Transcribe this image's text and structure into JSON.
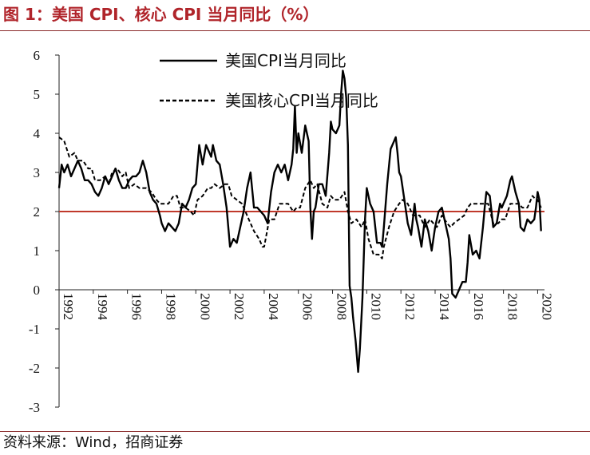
{
  "figure": {
    "title": "图 1：美国 CPI、核心 CPI 当月同比（%）",
    "source": "资料来源：Wind，招商证券"
  },
  "colors": {
    "title": "#b0242a",
    "rule": "#8a2a2a",
    "reference_line": "#c0392b",
    "series": "#000000"
  },
  "chart_data": {
    "type": "line",
    "title": "图 1：美国 CPI、核心 CPI 当月同比（%）",
    "xlabel": "",
    "ylabel": "",
    "xlim": [
      1992,
      2020.4
    ],
    "ylim": [
      -3,
      6
    ],
    "yticks": [
      6,
      5,
      4,
      3,
      2,
      1,
      0,
      -1,
      -2,
      -3
    ],
    "xticks": [
      "1992",
      "1994",
      "1996",
      "1998",
      "2000",
      "2002",
      "2004",
      "2006",
      "2008",
      "2010",
      "2012",
      "2014",
      "2016",
      "2018",
      "2020"
    ],
    "grid": false,
    "legend_position": "top-center",
    "reference_line": {
      "y": 2
    },
    "series": [
      {
        "name": "美国CPI当月同比",
        "style": "solid",
        "points": [
          [
            1992.0,
            2.6
          ],
          [
            1992.15,
            3.2
          ],
          [
            1992.3,
            3.0
          ],
          [
            1992.5,
            3.2
          ],
          [
            1992.7,
            2.9
          ],
          [
            1992.9,
            3.1
          ],
          [
            1993.1,
            3.3
          ],
          [
            1993.3,
            3.1
          ],
          [
            1993.5,
            2.8
          ],
          [
            1993.7,
            2.8
          ],
          [
            1993.9,
            2.7
          ],
          [
            1994.1,
            2.5
          ],
          [
            1994.3,
            2.4
          ],
          [
            1994.5,
            2.6
          ],
          [
            1994.7,
            2.9
          ],
          [
            1994.9,
            2.7
          ],
          [
            1995.1,
            2.9
          ],
          [
            1995.3,
            3.1
          ],
          [
            1995.5,
            2.8
          ],
          [
            1995.7,
            2.6
          ],
          [
            1995.9,
            2.6
          ],
          [
            1996.1,
            2.8
          ],
          [
            1996.3,
            2.9
          ],
          [
            1996.5,
            2.9
          ],
          [
            1996.7,
            3.0
          ],
          [
            1996.9,
            3.3
          ],
          [
            1997.1,
            3.0
          ],
          [
            1997.3,
            2.5
          ],
          [
            1997.5,
            2.3
          ],
          [
            1997.7,
            2.2
          ],
          [
            1997.9,
            1.9
          ],
          [
            1998.0,
            1.7
          ],
          [
            1998.2,
            1.5
          ],
          [
            1998.4,
            1.7
          ],
          [
            1998.6,
            1.6
          ],
          [
            1998.8,
            1.5
          ],
          [
            1999.0,
            1.7
          ],
          [
            1999.2,
            2.2
          ],
          [
            1999.4,
            2.1
          ],
          [
            1999.6,
            2.3
          ],
          [
            1999.8,
            2.6
          ],
          [
            2000.0,
            2.7
          ],
          [
            2000.2,
            3.7
          ],
          [
            2000.4,
            3.2
          ],
          [
            2000.6,
            3.7
          ],
          [
            2000.8,
            3.5
          ],
          [
            2000.9,
            3.4
          ],
          [
            2001.0,
            3.7
          ],
          [
            2001.2,
            3.3
          ],
          [
            2001.4,
            3.2
          ],
          [
            2001.6,
            2.7
          ],
          [
            2001.8,
            2.1
          ],
          [
            2002.0,
            1.1
          ],
          [
            2002.2,
            1.3
          ],
          [
            2002.4,
            1.2
          ],
          [
            2002.6,
            1.6
          ],
          [
            2002.8,
            2.0
          ],
          [
            2003.0,
            2.6
          ],
          [
            2003.2,
            3.0
          ],
          [
            2003.4,
            2.1
          ],
          [
            2003.6,
            2.1
          ],
          [
            2003.8,
            2.0
          ],
          [
            2004.0,
            1.9
          ],
          [
            2004.2,
            1.7
          ],
          [
            2004.4,
            2.5
          ],
          [
            2004.6,
            3.0
          ],
          [
            2004.8,
            3.2
          ],
          [
            2005.0,
            3.0
          ],
          [
            2005.2,
            3.2
          ],
          [
            2005.4,
            2.8
          ],
          [
            2005.6,
            3.2
          ],
          [
            2005.7,
            3.6
          ],
          [
            2005.8,
            4.7
          ],
          [
            2005.9,
            3.5
          ],
          [
            2006.0,
            4.0
          ],
          [
            2006.2,
            3.5
          ],
          [
            2006.4,
            4.2
          ],
          [
            2006.6,
            3.8
          ],
          [
            2006.7,
            2.1
          ],
          [
            2006.8,
            1.3
          ],
          [
            2006.9,
            2.0
          ],
          [
            2007.0,
            2.1
          ],
          [
            2007.2,
            2.7
          ],
          [
            2007.4,
            2.7
          ],
          [
            2007.6,
            2.4
          ],
          [
            2007.8,
            3.5
          ],
          [
            2007.9,
            4.3
          ],
          [
            2008.0,
            4.1
          ],
          [
            2008.2,
            4.0
          ],
          [
            2008.4,
            4.2
          ],
          [
            2008.5,
            5.0
          ],
          [
            2008.6,
            5.6
          ],
          [
            2008.7,
            5.4
          ],
          [
            2008.8,
            4.9
          ],
          [
            2008.9,
            3.7
          ],
          [
            2009.0,
            0.1
          ],
          [
            2009.1,
            -0.2
          ],
          [
            2009.2,
            -0.7
          ],
          [
            2009.35,
            -1.3
          ],
          [
            2009.5,
            -2.1
          ],
          [
            2009.6,
            -1.5
          ],
          [
            2009.75,
            -0.2
          ],
          [
            2009.9,
            1.8
          ],
          [
            2010.0,
            2.6
          ],
          [
            2010.2,
            2.2
          ],
          [
            2010.4,
            2.0
          ],
          [
            2010.6,
            1.2
          ],
          [
            2010.8,
            1.2
          ],
          [
            2010.9,
            1.1
          ],
          [
            2011.0,
            1.6
          ],
          [
            2011.2,
            2.7
          ],
          [
            2011.4,
            3.6
          ],
          [
            2011.6,
            3.8
          ],
          [
            2011.7,
            3.9
          ],
          [
            2011.8,
            3.5
          ],
          [
            2011.9,
            3.0
          ],
          [
            2012.0,
            2.9
          ],
          [
            2012.2,
            2.3
          ],
          [
            2012.4,
            1.7
          ],
          [
            2012.6,
            1.4
          ],
          [
            2012.8,
            2.2
          ],
          [
            2012.9,
            1.8
          ],
          [
            2013.0,
            1.6
          ],
          [
            2013.2,
            1.1
          ],
          [
            2013.4,
            1.8
          ],
          [
            2013.6,
            1.5
          ],
          [
            2013.8,
            1.0
          ],
          [
            2014.0,
            1.6
          ],
          [
            2014.2,
            2.0
          ],
          [
            2014.4,
            2.1
          ],
          [
            2014.6,
            1.7
          ],
          [
            2014.8,
            1.3
          ],
          [
            2014.9,
            0.8
          ],
          [
            2015.0,
            -0.1
          ],
          [
            2015.2,
            -0.2
          ],
          [
            2015.4,
            0.0
          ],
          [
            2015.6,
            0.2
          ],
          [
            2015.8,
            0.2
          ],
          [
            2015.9,
            0.7
          ],
          [
            2016.0,
            1.4
          ],
          [
            2016.2,
            0.9
          ],
          [
            2016.4,
            1.0
          ],
          [
            2016.6,
            0.8
          ],
          [
            2016.8,
            1.6
          ],
          [
            2016.9,
            2.1
          ],
          [
            2017.0,
            2.5
          ],
          [
            2017.2,
            2.4
          ],
          [
            2017.4,
            1.6
          ],
          [
            2017.6,
            1.7
          ],
          [
            2017.8,
            2.2
          ],
          [
            2017.9,
            2.1
          ],
          [
            2018.0,
            2.2
          ],
          [
            2018.2,
            2.4
          ],
          [
            2018.4,
            2.8
          ],
          [
            2018.5,
            2.9
          ],
          [
            2018.7,
            2.5
          ],
          [
            2018.9,
            2.2
          ],
          [
            2019.0,
            1.6
          ],
          [
            2019.2,
            1.5
          ],
          [
            2019.4,
            1.8
          ],
          [
            2019.6,
            1.7
          ],
          [
            2019.8,
            1.8
          ],
          [
            2019.9,
            2.1
          ],
          [
            2020.0,
            2.5
          ],
          [
            2020.1,
            2.3
          ],
          [
            2020.2,
            1.5
          ]
        ]
      },
      {
        "name": "美国核心CPI当月同比",
        "style": "dashed",
        "points": [
          [
            1992.0,
            3.9
          ],
          [
            1992.3,
            3.8
          ],
          [
            1992.6,
            3.4
          ],
          [
            1992.9,
            3.5
          ],
          [
            1993.1,
            3.3
          ],
          [
            1993.4,
            3.3
          ],
          [
            1993.7,
            3.1
          ],
          [
            1993.9,
            3.1
          ],
          [
            1994.1,
            2.8
          ],
          [
            1994.4,
            2.8
          ],
          [
            1994.7,
            2.9
          ],
          [
            1994.9,
            2.7
          ],
          [
            1995.1,
            3.0
          ],
          [
            1995.4,
            3.1
          ],
          [
            1995.7,
            2.9
          ],
          [
            1995.9,
            3.0
          ],
          [
            1996.1,
            2.6
          ],
          [
            1996.4,
            2.7
          ],
          [
            1996.7,
            2.6
          ],
          [
            1996.9,
            2.6
          ],
          [
            1997.1,
            2.6
          ],
          [
            1997.4,
            2.5
          ],
          [
            1997.7,
            2.3
          ],
          [
            1997.9,
            2.2
          ],
          [
            1998.1,
            2.2
          ],
          [
            1998.4,
            2.2
          ],
          [
            1998.7,
            2.4
          ],
          [
            1998.9,
            2.4
          ],
          [
            1999.1,
            2.1
          ],
          [
            1999.4,
            2.1
          ],
          [
            1999.7,
            2.0
          ],
          [
            1999.9,
            1.9
          ],
          [
            2000.1,
            2.3
          ],
          [
            2000.4,
            2.4
          ],
          [
            2000.7,
            2.6
          ],
          [
            2000.9,
            2.6
          ],
          [
            2001.1,
            2.7
          ],
          [
            2001.4,
            2.6
          ],
          [
            2001.7,
            2.7
          ],
          [
            2001.9,
            2.7
          ],
          [
            2002.1,
            2.4
          ],
          [
            2002.4,
            2.3
          ],
          [
            2002.7,
            2.2
          ],
          [
            2002.9,
            2.0
          ],
          [
            2003.1,
            1.8
          ],
          [
            2003.4,
            1.5
          ],
          [
            2003.7,
            1.3
          ],
          [
            2003.9,
            1.1
          ],
          [
            2004.0,
            1.1
          ],
          [
            2004.3,
            1.8
          ],
          [
            2004.6,
            1.8
          ],
          [
            2004.9,
            2.2
          ],
          [
            2005.1,
            2.2
          ],
          [
            2005.4,
            2.2
          ],
          [
            2005.7,
            2.0
          ],
          [
            2005.9,
            2.1
          ],
          [
            2006.1,
            2.1
          ],
          [
            2006.4,
            2.6
          ],
          [
            2006.7,
            2.8
          ],
          [
            2006.9,
            2.6
          ],
          [
            2007.1,
            2.7
          ],
          [
            2007.4,
            2.2
          ],
          [
            2007.7,
            2.1
          ],
          [
            2007.9,
            2.4
          ],
          [
            2008.1,
            2.3
          ],
          [
            2008.4,
            2.3
          ],
          [
            2008.7,
            2.5
          ],
          [
            2008.9,
            2.0
          ],
          [
            2009.1,
            1.7
          ],
          [
            2009.4,
            1.8
          ],
          [
            2009.7,
            1.6
          ],
          [
            2009.9,
            1.8
          ],
          [
            2010.1,
            1.3
          ],
          [
            2010.4,
            0.9
          ],
          [
            2010.7,
            0.9
          ],
          [
            2010.9,
            0.8
          ],
          [
            2011.0,
            1.1
          ],
          [
            2011.3,
            1.6
          ],
          [
            2011.6,
            2.0
          ],
          [
            2011.9,
            2.2
          ],
          [
            2012.1,
            2.3
          ],
          [
            2012.4,
            2.2
          ],
          [
            2012.7,
            1.9
          ],
          [
            2012.9,
            1.9
          ],
          [
            2013.1,
            1.9
          ],
          [
            2013.4,
            1.6
          ],
          [
            2013.7,
            1.8
          ],
          [
            2013.9,
            1.7
          ],
          [
            2014.1,
            1.6
          ],
          [
            2014.4,
            1.9
          ],
          [
            2014.7,
            1.7
          ],
          [
            2014.9,
            1.6
          ],
          [
            2015.1,
            1.7
          ],
          [
            2015.4,
            1.8
          ],
          [
            2015.7,
            1.9
          ],
          [
            2015.9,
            2.1
          ],
          [
            2016.1,
            2.2
          ],
          [
            2016.4,
            2.2
          ],
          [
            2016.7,
            2.2
          ],
          [
            2016.9,
            2.2
          ],
          [
            2017.1,
            2.2
          ],
          [
            2017.4,
            1.7
          ],
          [
            2017.7,
            1.7
          ],
          [
            2017.9,
            1.8
          ],
          [
            2018.1,
            1.8
          ],
          [
            2018.4,
            2.2
          ],
          [
            2018.7,
            2.2
          ],
          [
            2018.9,
            2.2
          ],
          [
            2019.1,
            2.1
          ],
          [
            2019.4,
            2.1
          ],
          [
            2019.7,
            2.4
          ],
          [
            2019.9,
            2.3
          ],
          [
            2020.0,
            2.3
          ],
          [
            2020.2,
            2.1
          ]
        ]
      }
    ]
  }
}
